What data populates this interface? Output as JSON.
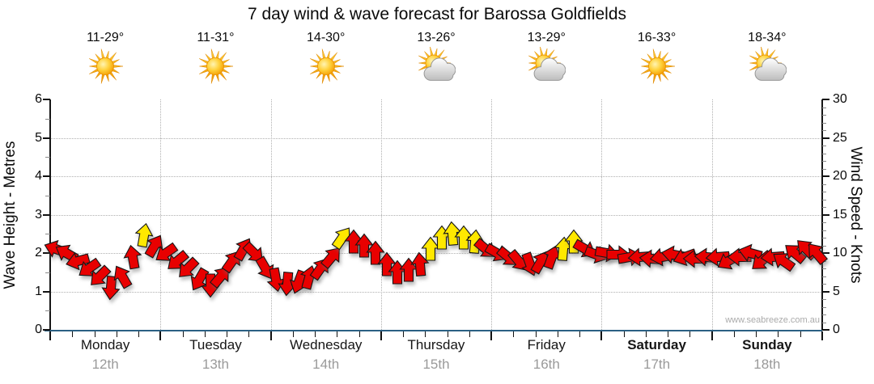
{
  "title": "7 day wind & wave forecast for Barossa Goldfields",
  "watermark": "www.seabreeze.com.au",
  "colors": {
    "arrow_red": "#e80000",
    "arrow_yellow": "#ffe800",
    "arrow_outline": "#161616",
    "x_axis_blue": "#2b6083",
    "grid_gray": "#b0b0b0",
    "date_gray": "#9a9a9a",
    "text_black": "#0a0a0a"
  },
  "chart_data": {
    "type": "scatter",
    "subtype": "wind-arrow-timeseries",
    "title": "7 day wind & wave forecast for Barossa Goldfields",
    "grid": true,
    "y_left": {
      "label": "Wave Height - Metres",
      "min": 0,
      "max": 6,
      "major_ticks": [
        0,
        1,
        2,
        3,
        4,
        5,
        6
      ],
      "minor_step": 0.5
    },
    "y_right": {
      "label": "Wind Speed - Knots",
      "min": 0,
      "max": 30,
      "major_ticks": [
        0,
        5,
        10,
        15,
        20,
        25,
        30
      ],
      "minor_step": 1
    },
    "days": [
      {
        "name": "Monday",
        "date": "12th",
        "temp": "11-29°",
        "icon": "sunny",
        "bold": false
      },
      {
        "name": "Tuesday",
        "date": "13th",
        "temp": "11-31°",
        "icon": "sunny",
        "bold": false
      },
      {
        "name": "Wednesday",
        "date": "14th",
        "temp": "14-30°",
        "icon": "sunny",
        "bold": false
      },
      {
        "name": "Thursday",
        "date": "15th",
        "temp": "13-26°",
        "icon": "partly-cloudy",
        "bold": false
      },
      {
        "name": "Friday",
        "date": "16th",
        "temp": "13-29°",
        "icon": "partly-cloudy",
        "bold": false
      },
      {
        "name": "Saturday",
        "date": "17th",
        "temp": "16-33°",
        "icon": "sunny",
        "bold": true
      },
      {
        "name": "Sunday",
        "date": "18th",
        "temp": "18-34°",
        "icon": "partly-cloudy",
        "bold": true
      }
    ],
    "arrows_note": "arrows are evenly spaced, 10 per day across 7 days; k=wind speed knots, dir=direction arrow points (deg, 0=E, 90=N), c=color r(ed)|y(ellow)",
    "arrows": [
      {
        "k": 10.5,
        "dir": 160,
        "c": "r"
      },
      {
        "k": 10.0,
        "dir": 150,
        "c": "r"
      },
      {
        "k": 9.0,
        "dir": 195,
        "c": "r"
      },
      {
        "k": 8.0,
        "dir": 215,
        "c": "r"
      },
      {
        "k": 7.0,
        "dir": 225,
        "c": "r"
      },
      {
        "k": 5.5,
        "dir": 265,
        "c": "r"
      },
      {
        "k": 7.0,
        "dir": 120,
        "c": "r"
      },
      {
        "k": 9.5,
        "dir": 100,
        "c": "r"
      },
      {
        "k": 12.3,
        "dir": 80,
        "c": "y"
      },
      {
        "k": 11.0,
        "dir": 60,
        "c": "r"
      },
      {
        "k": 10.0,
        "dir": 215,
        "c": "r"
      },
      {
        "k": 9.0,
        "dir": 220,
        "c": "r"
      },
      {
        "k": 8.0,
        "dir": 225,
        "c": "r"
      },
      {
        "k": 6.5,
        "dir": 240,
        "c": "r"
      },
      {
        "k": 5.8,
        "dir": 270,
        "c": "r"
      },
      {
        "k": 7.0,
        "dir": 50,
        "c": "r"
      },
      {
        "k": 9.0,
        "dir": 55,
        "c": "r"
      },
      {
        "k": 10.5,
        "dir": 60,
        "c": "r"
      },
      {
        "k": 10.0,
        "dir": 315,
        "c": "r"
      },
      {
        "k": 8.0,
        "dir": 300,
        "c": "r"
      },
      {
        "k": 6.5,
        "dir": 280,
        "c": "r"
      },
      {
        "k": 6.0,
        "dir": 265,
        "c": "r"
      },
      {
        "k": 6.2,
        "dir": 250,
        "c": "r"
      },
      {
        "k": 6.8,
        "dir": 75,
        "c": "r"
      },
      {
        "k": 8.0,
        "dir": 55,
        "c": "r"
      },
      {
        "k": 9.5,
        "dir": 50,
        "c": "r"
      },
      {
        "k": 12.0,
        "dir": 55,
        "c": "y"
      },
      {
        "k": 11.5,
        "dir": 90,
        "c": "r"
      },
      {
        "k": 11.0,
        "dir": 90,
        "c": "r"
      },
      {
        "k": 10.0,
        "dir": 90,
        "c": "r"
      },
      {
        "k": 8.5,
        "dir": 90,
        "c": "r"
      },
      {
        "k": 7.5,
        "dir": 90,
        "c": "r"
      },
      {
        "k": 7.8,
        "dir": 90,
        "c": "r"
      },
      {
        "k": 8.5,
        "dir": 95,
        "c": "r"
      },
      {
        "k": 10.5,
        "dir": 90,
        "c": "y"
      },
      {
        "k": 12.0,
        "dir": 90,
        "c": "y"
      },
      {
        "k": 12.5,
        "dir": 95,
        "c": "y"
      },
      {
        "k": 12.0,
        "dir": 90,
        "c": "y"
      },
      {
        "k": 11.5,
        "dir": 85,
        "c": "y"
      },
      {
        "k": 10.5,
        "dir": 320,
        "c": "r"
      },
      {
        "k": 10.0,
        "dir": 330,
        "c": "r"
      },
      {
        "k": 9.5,
        "dir": 320,
        "c": "r"
      },
      {
        "k": 9.0,
        "dir": 310,
        "c": "r"
      },
      {
        "k": 8.5,
        "dir": 290,
        "c": "r"
      },
      {
        "k": 8.8,
        "dir": 60,
        "c": "r"
      },
      {
        "k": 9.5,
        "dir": 70,
        "c": "r"
      },
      {
        "k": 10.5,
        "dir": 85,
        "c": "y"
      },
      {
        "k": 11.5,
        "dir": 90,
        "c": "y"
      },
      {
        "k": 10.5,
        "dir": 330,
        "c": "r"
      },
      {
        "k": 9.8,
        "dir": 340,
        "c": "r"
      },
      {
        "k": 10.0,
        "dir": 350,
        "c": "r"
      },
      {
        "k": 9.8,
        "dir": 0,
        "c": "r"
      },
      {
        "k": 9.5,
        "dir": 10,
        "c": "r"
      },
      {
        "k": 9.5,
        "dir": 185,
        "c": "r"
      },
      {
        "k": 9.3,
        "dir": 175,
        "c": "r"
      },
      {
        "k": 9.5,
        "dir": 190,
        "c": "r"
      },
      {
        "k": 9.8,
        "dir": 170,
        "c": "r"
      },
      {
        "k": 9.5,
        "dir": 200,
        "c": "r"
      },
      {
        "k": 9.3,
        "dir": 180,
        "c": "r"
      },
      {
        "k": 9.5,
        "dir": 175,
        "c": "r"
      },
      {
        "k": 9.5,
        "dir": 185,
        "c": "r"
      },
      {
        "k": 9.0,
        "dir": 210,
        "c": "r"
      },
      {
        "k": 9.5,
        "dir": 180,
        "c": "r"
      },
      {
        "k": 10.0,
        "dir": 165,
        "c": "r"
      },
      {
        "k": 9.0,
        "dir": 220,
        "c": "r"
      },
      {
        "k": 9.5,
        "dir": 185,
        "c": "r"
      },
      {
        "k": 9.0,
        "dir": 145,
        "c": "r"
      },
      {
        "k": 10.0,
        "dir": 140,
        "c": "r"
      },
      {
        "k": 10.5,
        "dir": 135,
        "c": "r"
      },
      {
        "k": 10.0,
        "dir": 130,
        "c": "r"
      }
    ]
  }
}
